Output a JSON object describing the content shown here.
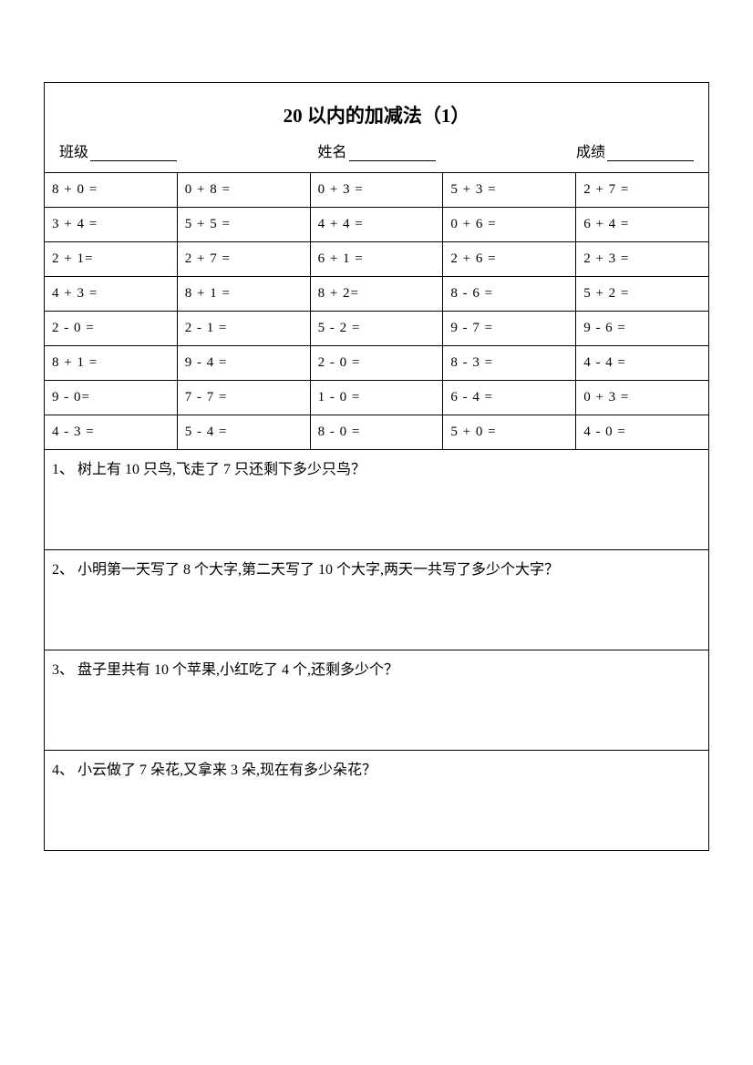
{
  "title": "20 以内的加减法（1）",
  "info": {
    "class_label": "班级",
    "name_label": "姓名",
    "score_label": "成绩"
  },
  "math_grid": {
    "rows": [
      [
        "8 + 0 =",
        "0 + 8 =",
        "0 + 3 =",
        "5 + 3 =",
        "2 + 7 ="
      ],
      [
        "3 + 4 =",
        "5 + 5 =",
        "4 + 4 =",
        "0 + 6 =",
        "6 + 4 ="
      ],
      [
        "2 + 1=",
        "2 + 7 =",
        "6 + 1 =",
        "2 + 6 =",
        "2 + 3 ="
      ],
      [
        "4 + 3 =",
        "8 + 1 =",
        "8 + 2=",
        "8 - 6 =",
        "5 + 2 ="
      ],
      [
        "2 - 0 =",
        "2 - 1 =",
        "5 - 2 =",
        "9 - 7 =",
        "9 - 6 ="
      ],
      [
        "8 + 1 =",
        "9 - 4 =",
        "2 - 0 =",
        "8 - 3 =",
        "4 - 4 ="
      ],
      [
        "9 - 0=",
        "7 - 7 =",
        "1 - 0 =",
        "6 - 4 =",
        "0 + 3 ="
      ],
      [
        "4 - 3 =",
        "5 - 4 =",
        "8 - 0 =",
        "5 + 0 =",
        "4 - 0 ="
      ]
    ]
  },
  "word_problems": [
    {
      "num": "1、",
      "text": "树上有 10 只鸟,飞走了 7 只还剩下多少只鸟？"
    },
    {
      "num": "2、",
      "text": "小明第一天写了 8 个大字,第二天写了 10 个大字,两天一共写了多少个大字？"
    },
    {
      "num": "3、",
      "text": "盘子里共有 10 个苹果,小红吃了 4 个,还剩多少个？"
    },
    {
      "num": "4、",
      "text": "小云做了 7 朵花,又拿来 3 朵,现在有多少朵花？"
    }
  ]
}
